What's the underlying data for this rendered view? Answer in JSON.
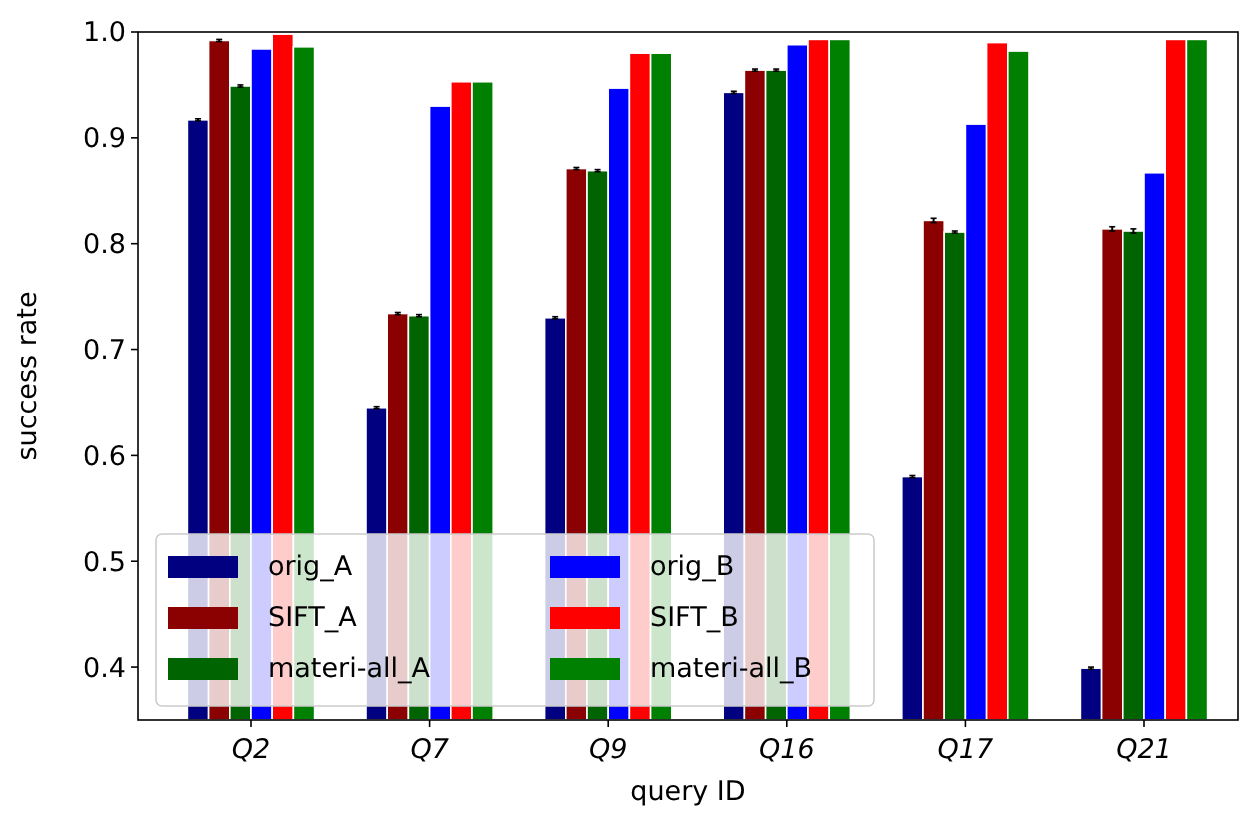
{
  "chart_data": {
    "type": "bar",
    "xlabel": "query ID",
    "ylabel": "success rate",
    "categories": [
      "Q2",
      "Q7",
      "Q9",
      "Q16",
      "Q17",
      "Q21"
    ],
    "series": [
      {
        "name": "orig_A",
        "color": "#000080",
        "values": [
          0.917,
          0.645,
          0.73,
          0.943,
          0.58,
          0.399
        ],
        "errors": [
          0.001,
          0.001,
          0.001,
          0.001,
          0.001,
          0.001
        ]
      },
      {
        "name": "SIFT_A",
        "color": "#8b0000",
        "values": [
          0.992,
          0.734,
          0.871,
          0.964,
          0.822,
          0.814
        ],
        "errors": [
          0.001,
          0.001,
          0.001,
          0.001,
          0.002,
          0.002
        ]
      },
      {
        "name": "materi-all_A",
        "color": "#006400",
        "values": [
          0.949,
          0.732,
          0.869,
          0.964,
          0.811,
          0.812
        ],
        "errors": [
          0.001,
          0.001,
          0.001,
          0.001,
          0.001,
          0.002
        ]
      },
      {
        "name": "orig_B",
        "color": "#0000ff",
        "values": [
          0.984,
          0.93,
          0.947,
          0.988,
          0.913,
          0.867
        ]
      },
      {
        "name": "SIFT_B",
        "color": "#ff0000",
        "values": [
          0.998,
          0.953,
          0.98,
          0.993,
          0.99,
          0.993
        ]
      },
      {
        "name": "materi-all_B",
        "color": "#008000",
        "values": [
          0.986,
          0.953,
          0.98,
          0.993,
          0.982,
          0.993
        ]
      }
    ],
    "ylim": [
      0.35,
      1.0
    ],
    "yticks": [
      {
        "value": 0.4,
        "label": "0.4"
      },
      {
        "value": 0.5,
        "label": "0.5"
      },
      {
        "value": 0.6,
        "label": "0.6"
      },
      {
        "value": 0.7,
        "label": "0.7"
      },
      {
        "value": 0.8,
        "label": "0.8"
      },
      {
        "value": 0.9,
        "label": "0.9"
      },
      {
        "value": 1.0,
        "label": "1.0"
      }
    ],
    "grid": false,
    "legend": "bottom left"
  }
}
